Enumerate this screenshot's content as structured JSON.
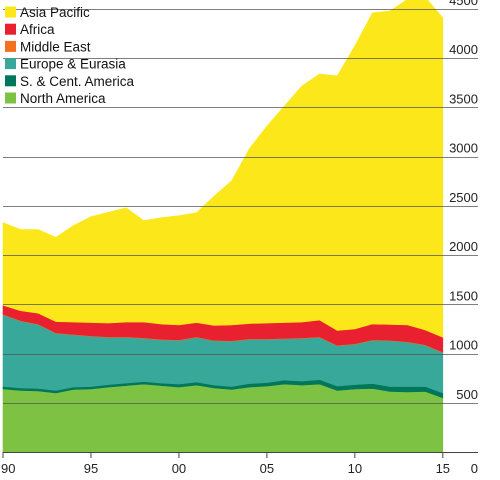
{
  "chart_data": {
    "type": "area",
    "stacked": true,
    "title": "",
    "xlabel": "",
    "ylabel": "",
    "x": [
      1990,
      1991,
      1992,
      1993,
      1994,
      1995,
      1996,
      1997,
      1998,
      1999,
      2000,
      2001,
      2002,
      2003,
      2004,
      2005,
      2006,
      2007,
      2008,
      2009,
      2010,
      2011,
      2012,
      2013,
      2014,
      2015
    ],
    "xticks": [
      1990,
      1995,
      2000,
      2005,
      2010,
      2015
    ],
    "xtick_labels": [
      "90",
      "95",
      "00",
      "05",
      "10",
      "15"
    ],
    "xlim": [
      1990,
      2017
    ],
    "ylim": [
      0,
      4500
    ],
    "yticks": [
      0,
      500,
      1000,
      1500,
      2000,
      2500,
      3000,
      3500,
      4000,
      4500
    ],
    "ytick_labels": [
      "0",
      "500",
      "1000",
      "1500",
      "2000",
      "2500",
      "3000",
      "3500",
      "4000",
      "4500"
    ],
    "y_axis_position": "right",
    "grid": "horizontal",
    "legend_position": "top-left",
    "series": [
      {
        "name": "North America",
        "color": "#7dc243",
        "values": [
          640,
          625,
          620,
          600,
          635,
          640,
          660,
          675,
          690,
          675,
          660,
          680,
          650,
          635,
          660,
          670,
          690,
          680,
          690,
          625,
          640,
          645,
          615,
          610,
          615,
          550
        ]
      },
      {
        "name": "S. & Cent. America",
        "color": "#00775a",
        "values": [
          25,
          25,
          25,
          25,
          25,
          25,
          25,
          25,
          25,
          25,
          30,
          30,
          30,
          30,
          35,
          35,
          40,
          40,
          45,
          45,
          45,
          50,
          50,
          55,
          50,
          50
        ]
      },
      {
        "name": "Europe & Eurasia",
        "color": "#37a89a",
        "values": [
          730,
          680,
          650,
          580,
          530,
          510,
          480,
          465,
          440,
          440,
          445,
          455,
          450,
          460,
          450,
          440,
          420,
          435,
          430,
          410,
          410,
          440,
          465,
          450,
          420,
          410
        ]
      },
      {
        "name": "Middle East",
        "color": "#f37021",
        "values": [
          5,
          5,
          5,
          5,
          5,
          5,
          5,
          5,
          5,
          5,
          5,
          5,
          5,
          5,
          5,
          5,
          5,
          5,
          5,
          5,
          5,
          5,
          5,
          5,
          5,
          5
        ]
      },
      {
        "name": "Africa",
        "color": "#e8202f",
        "values": [
          90,
          100,
          110,
          115,
          125,
          135,
          140,
          150,
          160,
          155,
          150,
          145,
          150,
          160,
          155,
          160,
          160,
          160,
          170,
          150,
          150,
          160,
          160,
          170,
          150,
          150
        ]
      },
      {
        "name": "Asia Pacific",
        "color": "#fce71b",
        "values": [
          840,
          825,
          850,
          855,
          980,
          1075,
          1125,
          1160,
          1030,
          1080,
          1110,
          1115,
          1315,
          1465,
          1775,
          2000,
          2200,
          2400,
          2500,
          2585,
          2875,
          3160,
          3185,
          3310,
          3380,
          3245
        ]
      }
    ]
  }
}
